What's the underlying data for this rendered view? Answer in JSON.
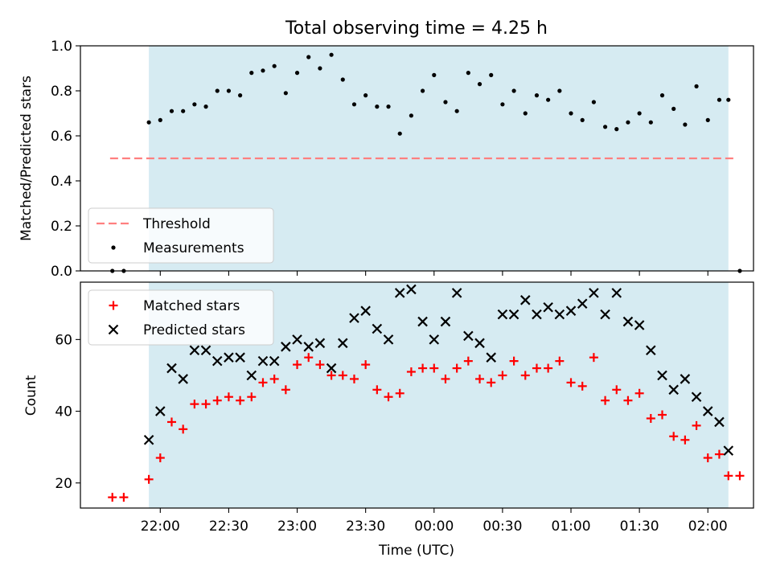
{
  "title": "Total observing time = 4.25 h",
  "chart_data": [
    {
      "type": "scatter",
      "ylabel": "Matched/Predicted stars",
      "xlabel": "",
      "xlim": [
        "21:25",
        "02:20"
      ],
      "ylim": [
        0.0,
        1.0
      ],
      "yticks": [
        "0.0",
        "0.2",
        "0.4",
        "0.6",
        "0.8",
        "1.0"
      ],
      "observing_window": [
        "21:55",
        "02:09"
      ],
      "threshold": {
        "name": "Threshold",
        "value": 0.5,
        "x_range": [
          "21:38",
          "02:12"
        ],
        "color": "#ff7f7f"
      },
      "legend": {
        "position": "bottom-left",
        "entries": [
          "Threshold",
          "Measurements"
        ]
      },
      "series": [
        {
          "name": "Measurements",
          "color": "#000000",
          "marker": "dot",
          "x": [
            "21:39",
            "21:44",
            "21:55",
            "22:00",
            "22:05",
            "22:10",
            "22:15",
            "22:20",
            "22:25",
            "22:30",
            "22:35",
            "22:40",
            "22:45",
            "22:50",
            "22:55",
            "23:00",
            "23:05",
            "23:10",
            "23:15",
            "23:20",
            "23:25",
            "23:30",
            "23:35",
            "23:40",
            "23:45",
            "23:50",
            "23:55",
            "00:00",
            "00:05",
            "00:10",
            "00:15",
            "00:20",
            "00:25",
            "00:30",
            "00:35",
            "00:40",
            "00:45",
            "00:50",
            "00:55",
            "01:00",
            "01:05",
            "01:10",
            "01:15",
            "01:20",
            "01:25",
            "01:30",
            "01:35",
            "01:40",
            "01:45",
            "01:50",
            "01:55",
            "02:00",
            "02:05",
            "02:09",
            "02:14"
          ],
          "y": [
            0.0,
            0.0,
            0.66,
            0.67,
            0.71,
            0.71,
            0.74,
            0.73,
            0.8,
            0.8,
            0.78,
            0.88,
            0.89,
            0.91,
            0.79,
            0.88,
            0.95,
            0.9,
            0.96,
            0.85,
            0.74,
            0.78,
            0.73,
            0.73,
            0.61,
            0.69,
            0.8,
            0.87,
            0.75,
            0.71,
            0.88,
            0.83,
            0.87,
            0.74,
            0.8,
            0.7,
            0.78,
            0.76,
            0.8,
            0.7,
            0.67,
            0.75,
            0.64,
            0.63,
            0.66,
            0.7,
            0.66,
            0.78,
            0.72,
            0.65,
            0.82,
            0.67,
            0.76,
            0.76,
            0.0
          ]
        }
      ]
    },
    {
      "type": "scatter",
      "ylabel": "Count",
      "xlabel": "Time (UTC)",
      "xlim": [
        "21:25",
        "02:20"
      ],
      "ylim": [
        13,
        76
      ],
      "yticks": [
        "20",
        "40",
        "60"
      ],
      "xticks": [
        "22:00",
        "22:30",
        "23:00",
        "23:30",
        "00:00",
        "00:30",
        "01:00",
        "01:30",
        "02:00"
      ],
      "observing_window": [
        "21:55",
        "02:09"
      ],
      "legend": {
        "position": "top-left",
        "entries": [
          "Matched stars",
          "Predicted stars"
        ]
      },
      "series": [
        {
          "name": "Matched stars",
          "color": "#ff0000",
          "marker": "plus",
          "x": [
            "21:39",
            "21:44",
            "21:55",
            "22:00",
            "22:05",
            "22:10",
            "22:15",
            "22:20",
            "22:25",
            "22:30",
            "22:35",
            "22:40",
            "22:45",
            "22:50",
            "22:55",
            "23:00",
            "23:05",
            "23:10",
            "23:15",
            "23:20",
            "23:25",
            "23:30",
            "23:35",
            "23:40",
            "23:45",
            "23:50",
            "23:55",
            "00:00",
            "00:05",
            "00:10",
            "00:15",
            "00:20",
            "00:25",
            "00:30",
            "00:35",
            "00:40",
            "00:45",
            "00:50",
            "00:55",
            "01:00",
            "01:05",
            "01:10",
            "01:15",
            "01:20",
            "01:25",
            "01:30",
            "01:35",
            "01:40",
            "01:45",
            "01:50",
            "01:55",
            "02:00",
            "02:05",
            "02:09",
            "02:14"
          ],
          "y": [
            16,
            16,
            21,
            27,
            37,
            35,
            42,
            42,
            43,
            44,
            43,
            44,
            48,
            49,
            46,
            53,
            55,
            53,
            50,
            50,
            49,
            53,
            46,
            44,
            45,
            51,
            52,
            52,
            49,
            52,
            54,
            49,
            48,
            50,
            54,
            50,
            52,
            52,
            54,
            48,
            47,
            55,
            43,
            46,
            43,
            45,
            38,
            39,
            33,
            32,
            36,
            27,
            28,
            22,
            22
          ]
        },
        {
          "name": "Predicted stars",
          "color": "#000000",
          "marker": "x",
          "x": [
            "21:55",
            "22:00",
            "22:05",
            "22:10",
            "22:15",
            "22:20",
            "22:25",
            "22:30",
            "22:35",
            "22:40",
            "22:45",
            "22:50",
            "22:55",
            "23:00",
            "23:05",
            "23:10",
            "23:15",
            "23:20",
            "23:25",
            "23:30",
            "23:35",
            "23:40",
            "23:45",
            "23:50",
            "23:55",
            "00:00",
            "00:05",
            "00:10",
            "00:15",
            "00:20",
            "00:25",
            "00:30",
            "00:35",
            "00:40",
            "00:45",
            "00:50",
            "00:55",
            "01:00",
            "01:05",
            "01:10",
            "01:15",
            "01:20",
            "01:25",
            "01:30",
            "01:35",
            "01:40",
            "01:45",
            "01:50",
            "01:55",
            "02:00",
            "02:05",
            "02:09"
          ],
          "y": [
            32,
            40,
            52,
            49,
            57,
            57,
            54,
            55,
            55,
            50,
            54,
            54,
            58,
            60,
            58,
            59,
            52,
            59,
            66,
            68,
            63,
            60,
            73,
            74,
            65,
            60,
            65,
            73,
            61,
            59,
            55,
            67,
            67,
            71,
            67,
            69,
            67,
            68,
            70,
            73,
            67,
            73,
            65,
            64,
            57,
            50,
            46,
            49,
            44,
            40,
            37,
            29
          ]
        }
      ]
    }
  ]
}
